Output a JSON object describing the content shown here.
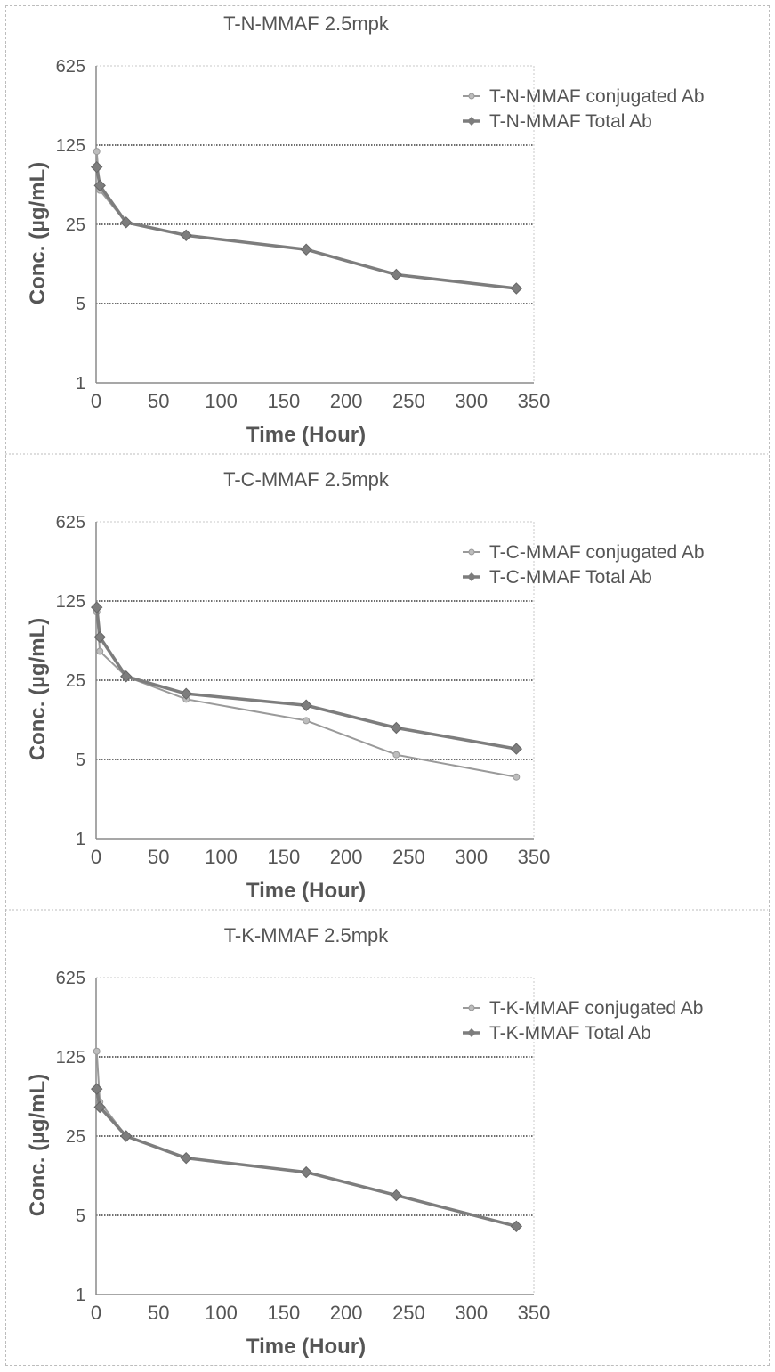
{
  "chart_data": [
    {
      "type": "line",
      "title": "T-N-MMAF 2.5mpk",
      "xlabel": "Time (Hour)",
      "ylabel": "Conc. (µg/mL)",
      "xlim": [
        0,
        350
      ],
      "ylim": [
        1,
        625
      ],
      "yscale": "log",
      "xticks": [
        "0",
        "50",
        "100",
        "150",
        "200",
        "250",
        "300",
        "350"
      ],
      "yticks": [
        "1",
        "5",
        "25",
        "125",
        "625"
      ],
      "grid": "horizontal",
      "legend_position": "top-right",
      "series": [
        {
          "name": "T-N-MMAF conjugated Ab",
          "color": "#9a9a9a",
          "marker": "circle-small",
          "x": [
            0.5,
            3,
            24,
            72,
            168,
            240,
            336
          ],
          "y": [
            110,
            50,
            26,
            20,
            15,
            9,
            6.8
          ]
        },
        {
          "name": "T-N-MMAF Total Ab",
          "color": "#7d7d7d",
          "marker": "diamond",
          "x": [
            0.5,
            3,
            24,
            72,
            168,
            240,
            336
          ],
          "y": [
            80,
            55,
            26,
            20,
            15,
            9,
            6.8
          ]
        }
      ]
    },
    {
      "type": "line",
      "title": "T-C-MMAF 2.5mpk",
      "xlabel": "Time (Hour)",
      "ylabel": "Conc. (µg/mL)",
      "xlim": [
        0,
        350
      ],
      "ylim": [
        1,
        625
      ],
      "yscale": "log",
      "xticks": [
        "0",
        "50",
        "100",
        "150",
        "200",
        "250",
        "300",
        "350"
      ],
      "yticks": [
        "1",
        "5",
        "25",
        "125",
        "625"
      ],
      "grid": "horizontal",
      "legend_position": "top-right",
      "series": [
        {
          "name": "T-C-MMAF conjugated Ab",
          "color": "#9a9a9a",
          "marker": "circle-small",
          "x": [
            0.5,
            3,
            24,
            72,
            168,
            240,
            336
          ],
          "y": [
            100,
            45,
            27,
            17,
            11,
            5.5,
            3.5
          ]
        },
        {
          "name": "T-C-MMAF Total Ab",
          "color": "#7d7d7d",
          "marker": "diamond",
          "x": [
            0.5,
            3,
            24,
            72,
            168,
            240,
            336
          ],
          "y": [
            110,
            60,
            27,
            19,
            15,
            9.5,
            6.2
          ]
        }
      ]
    },
    {
      "type": "line",
      "title": "T-K-MMAF 2.5mpk",
      "xlabel": "Time (Hour)",
      "ylabel": "Conc. (µg/mL)",
      "xlim": [
        0,
        350
      ],
      "ylim": [
        1,
        625
      ],
      "yscale": "log",
      "xticks": [
        "0",
        "50",
        "100",
        "150",
        "200",
        "250",
        "300",
        "350"
      ],
      "yticks": [
        "1",
        "5",
        "25",
        "125",
        "625"
      ],
      "grid": "horizontal",
      "legend_position": "top-right",
      "series": [
        {
          "name": "T-K-MMAF conjugated Ab",
          "color": "#9a9a9a",
          "marker": "circle-small",
          "x": [
            0.5,
            3,
            24,
            72,
            168,
            240,
            336
          ],
          "y": [
            140,
            50,
            25,
            16,
            12,
            7.5,
            4
          ]
        },
        {
          "name": "T-K-MMAF Total Ab",
          "color": "#7d7d7d",
          "marker": "diamond",
          "x": [
            0.5,
            3,
            24,
            72,
            168,
            240,
            336
          ],
          "y": [
            65,
            45,
            25,
            16,
            12,
            7.5,
            4
          ]
        }
      ]
    }
  ]
}
